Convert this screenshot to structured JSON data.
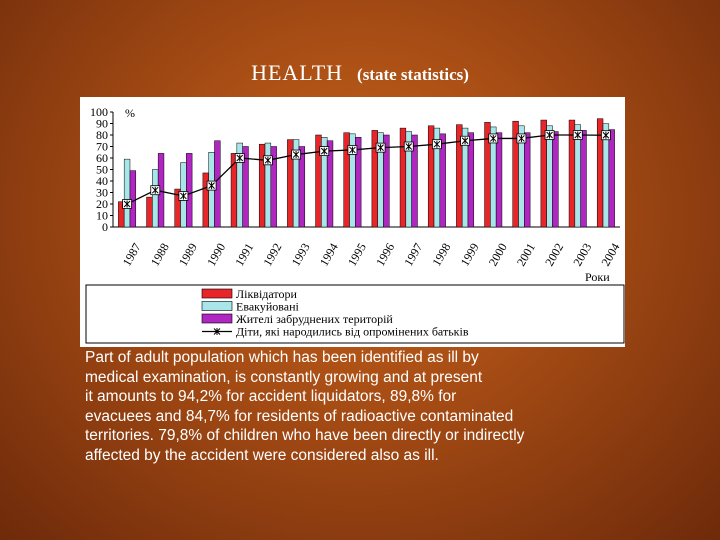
{
  "title": "HEALTH",
  "subtitle": "(state statistics)",
  "chart_data": {
    "type": "bar",
    "ylabel": "%",
    "xlabel": "Роки",
    "ylim": [
      0,
      100
    ],
    "yticks": [
      0,
      10,
      20,
      30,
      40,
      50,
      60,
      70,
      80,
      90,
      100
    ],
    "categories": [
      "1987",
      "1988",
      "1989",
      "1990",
      "1991",
      "1992",
      "1993",
      "1994",
      "1995",
      "1996",
      "1997",
      "1998",
      "1999",
      "2000",
      "2001",
      "2002",
      "2003",
      "2004"
    ],
    "series": [
      {
        "name": "Ліквідатори",
        "color": "#e8262a",
        "values": [
          22,
          26,
          33,
          47,
          64,
          72,
          76,
          80,
          82,
          84,
          86,
          88,
          89,
          91,
          92,
          93,
          93,
          94.2
        ]
      },
      {
        "name": "Евакуйовані",
        "color": "#a8e6ea",
        "values": [
          59,
          50,
          56,
          65,
          73,
          73,
          76,
          78,
          81,
          82,
          83,
          86,
          86,
          87,
          88,
          88,
          89,
          89.8
        ]
      },
      {
        "name": "Жителі забруднених територій",
        "color": "#b026c0",
        "values": [
          49,
          64,
          64,
          75,
          70,
          70,
          70,
          75,
          78,
          80,
          80,
          81,
          82,
          82,
          82,
          83,
          84,
          84.7
        ]
      },
      {
        "name": "Діти, які народились від опромінених батьків",
        "color": "#000000",
        "values": [
          20,
          32,
          27,
          36,
          60,
          58,
          63,
          66,
          67,
          69,
          70,
          72,
          75,
          77,
          77,
          80,
          80,
          79.8
        ]
      }
    ],
    "legend_position": "bottom"
  },
  "caption": "Part of adult population which has been identified as ill by\nmedical examination, is constantly growing and  at present\nit amounts to 94,2% for  accident liquidators, 89,8% for\nevacuees and  84,7%  for residents of radioactive contaminated\nterritories.  79,8%   of children who have been directly  or indirectly\naffected by the accident were considered also as ill."
}
